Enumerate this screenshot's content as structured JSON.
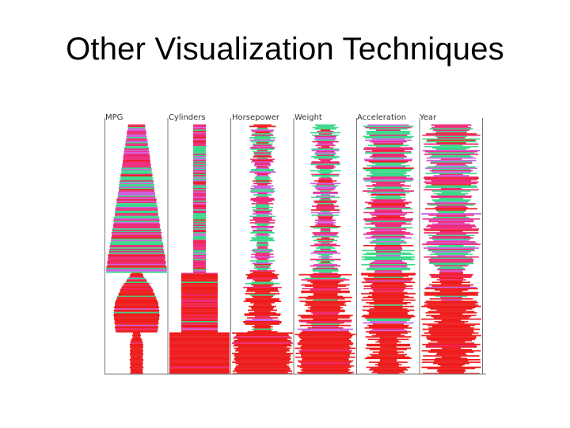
{
  "slide": {
    "title": "Other Visualization Techniques"
  },
  "figure": {
    "columns": [
      {
        "label": "MPG"
      },
      {
        "label": "Cylinders"
      },
      {
        "label": "Horsepower"
      },
      {
        "label": "Weight"
      },
      {
        "label": "Acceleration"
      },
      {
        "label": "Year"
      }
    ],
    "colors": {
      "class_a": "#ee1c1c",
      "class_b": "#ee2a7a",
      "class_c": "#3bd98a",
      "class_d": "#d060e0",
      "axis": "#777777"
    }
  }
}
